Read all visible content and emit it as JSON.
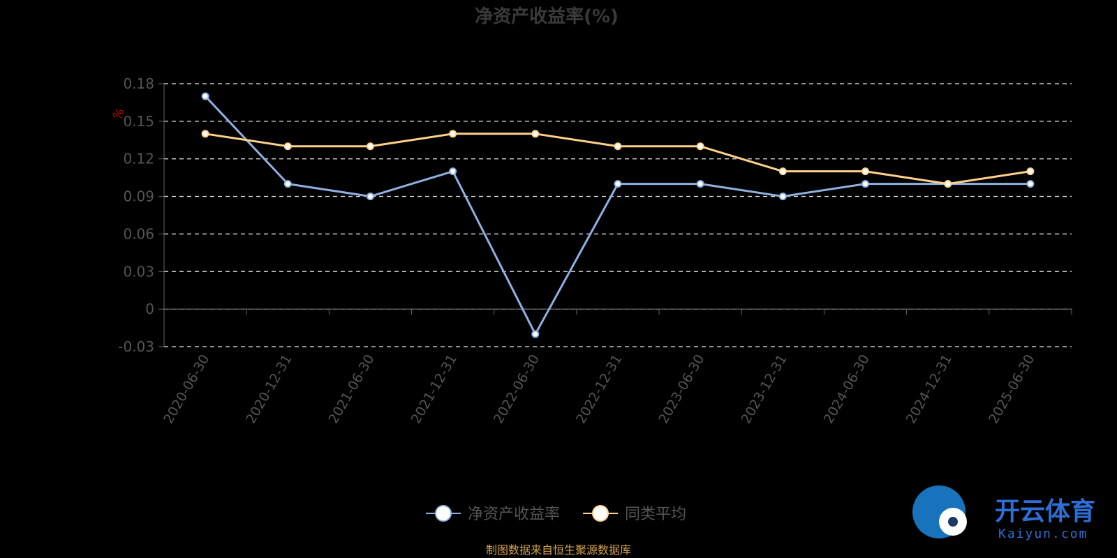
{
  "chart_data": {
    "type": "line",
    "title": "净资产收益率(%)",
    "unit_label": "%",
    "categories": [
      "2020-06-30",
      "2020-12-31",
      "2021-06-30",
      "2021-12-31",
      "2022-06-30",
      "2022-12-31",
      "2023-06-30",
      "2023-12-31",
      "2024-06-30",
      "2024-12-31",
      "2025-06-30"
    ],
    "series": [
      {
        "name": "净资产收益率",
        "color": "#8fb0e0",
        "values": [
          0.17,
          0.1,
          0.09,
          0.11,
          -0.02,
          0.1,
          0.1,
          0.09,
          0.1,
          0.1,
          0.1
        ]
      },
      {
        "name": "同类平均",
        "color": "#ffd28a",
        "values": [
          0.14,
          0.13,
          0.13,
          0.14,
          0.14,
          0.13,
          0.13,
          0.11,
          0.11,
          0.1,
          0.11
        ]
      }
    ],
    "yticks": [
      "0.18",
      "0.15",
      "0.12",
      "0.09",
      "0.06",
      "0.03",
      "0",
      "-0.03"
    ],
    "ylim": [
      -0.03,
      0.18
    ],
    "grid": true,
    "legend_position": "bottom-center"
  },
  "source_note": "制图数据来自恒生聚源数据库",
  "watermark": {
    "cn": "开云体育",
    "en": "Kaiyun.com"
  }
}
